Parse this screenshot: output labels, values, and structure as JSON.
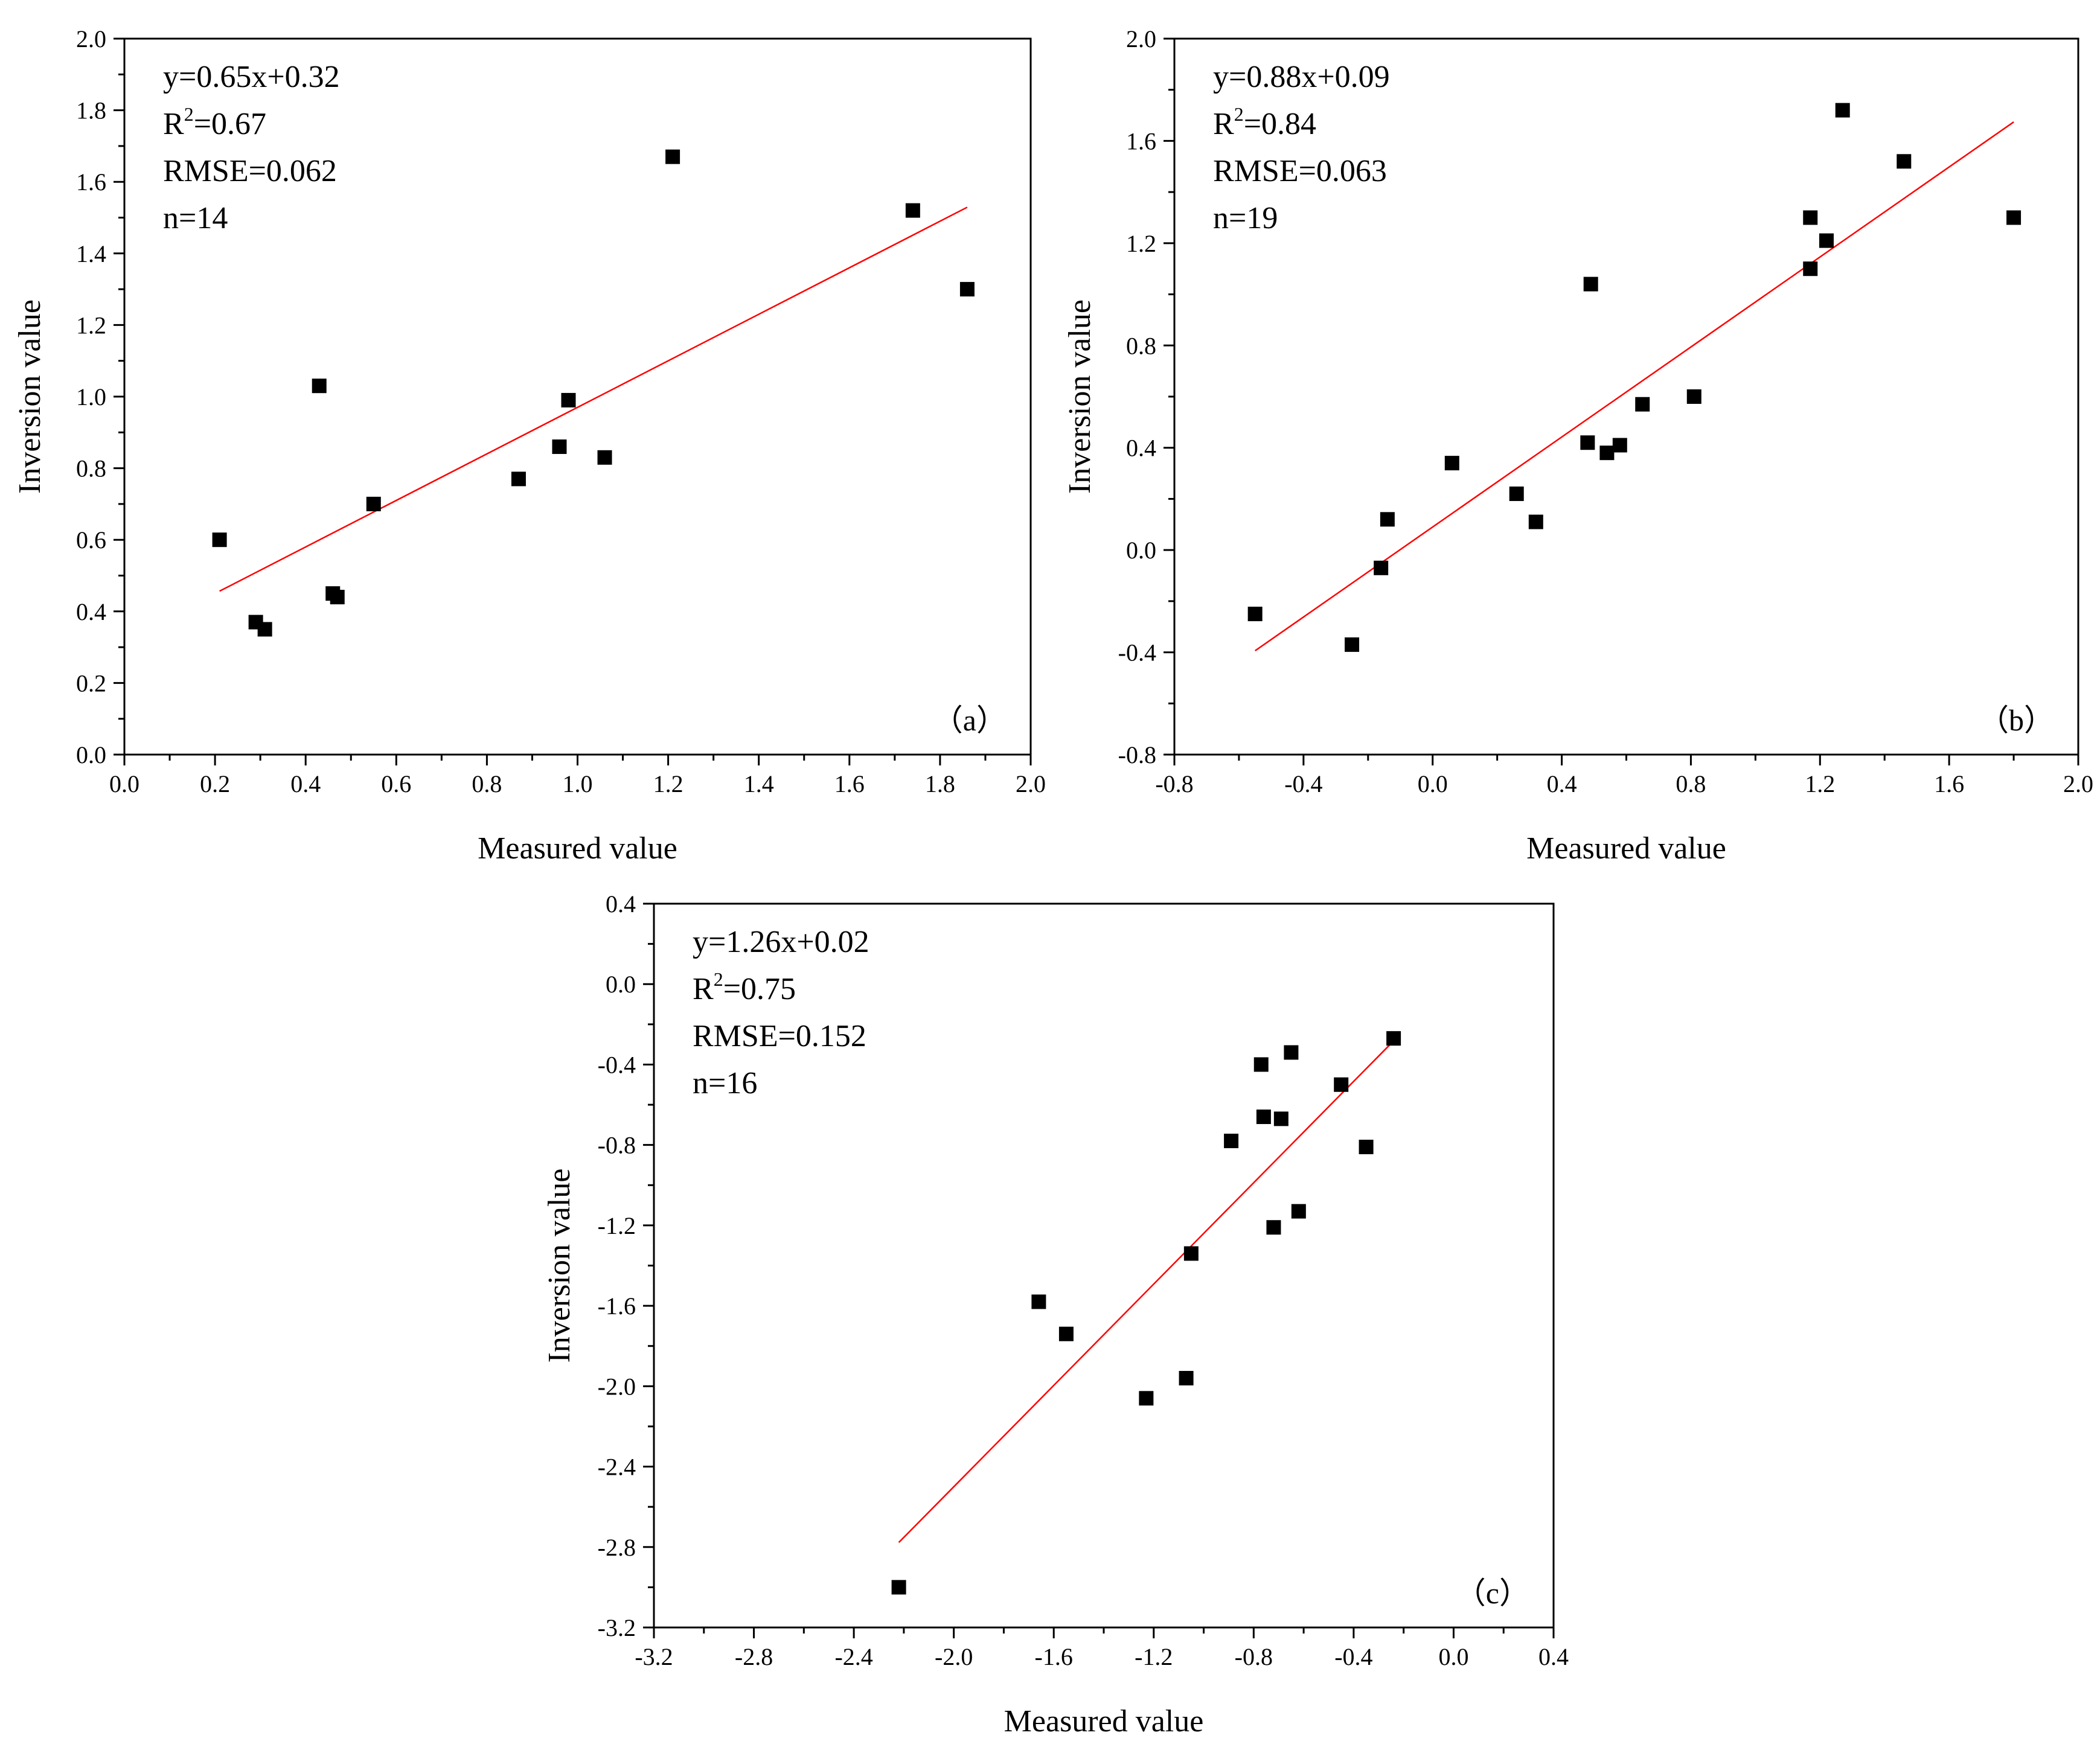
{
  "chart_data": [
    {
      "type": "scatter",
      "panel_label": "（a）",
      "xlabel": "Measured value",
      "ylabel": "Inversion value",
      "xlim": [
        0.0,
        2.0
      ],
      "ylim": [
        0.0,
        2.0
      ],
      "xticks": [
        "0.0",
        "0.2",
        "0.4",
        "0.6",
        "0.8",
        "1.0",
        "1.2",
        "1.4",
        "1.6",
        "1.8",
        "2.0"
      ],
      "yticks": [
        "0.0",
        "0.2",
        "0.4",
        "0.6",
        "0.8",
        "1.0",
        "1.2",
        "1.4",
        "1.6",
        "1.8",
        "2.0"
      ],
      "annotation": {
        "equation": "y=0.65x+0.32",
        "r2_prefix": "R",
        "r2_sup": "2",
        "r2_value": "=0.67",
        "rmse": "RMSE=0.062",
        "n": "n=14"
      },
      "fit_line": {
        "slope": 0.65,
        "intercept": 0.32,
        "x_start": 0.21,
        "x_end": 1.86,
        "color": "#ff0000"
      },
      "points": [
        [
          0.21,
          0.6
        ],
        [
          0.29,
          0.37
        ],
        [
          0.31,
          0.35
        ],
        [
          0.43,
          1.03
        ],
        [
          0.46,
          0.45
        ],
        [
          0.47,
          0.44
        ],
        [
          0.55,
          0.7
        ],
        [
          0.87,
          0.77
        ],
        [
          0.96,
          0.86
        ],
        [
          0.98,
          0.99
        ],
        [
          1.06,
          0.83
        ],
        [
          1.21,
          1.67
        ],
        [
          1.74,
          1.52
        ],
        [
          1.86,
          1.3
        ]
      ]
    },
    {
      "type": "scatter",
      "panel_label": "（b）",
      "xlabel": "Measured value",
      "ylabel": "Inversion value",
      "xlim": [
        -0.8,
        2.0
      ],
      "ylim": [
        -0.8,
        2.0
      ],
      "xticks": [
        "-0.8",
        "-0.4",
        "0.0",
        "0.4",
        "0.8",
        "1.2",
        "1.6",
        "2.0"
      ],
      "yticks": [
        "-0.8",
        "-0.4",
        "0.0",
        "0.4",
        "0.8",
        "1.2",
        "1.6",
        "2.0"
      ],
      "annotation": {
        "equation": "y=0.88x+0.09",
        "r2_prefix": "R",
        "r2_sup": "2",
        "r2_value": "=0.84",
        "rmse": "RMSE=0.063",
        "n": "n=19"
      },
      "fit_line": {
        "slope": 0.88,
        "intercept": 0.09,
        "x_start": -0.55,
        "x_end": 1.8,
        "color": "#ff0000"
      },
      "points": [
        [
          -0.55,
          -0.25
        ],
        [
          -0.25,
          -0.37
        ],
        [
          -0.16,
          -0.07
        ],
        [
          -0.14,
          0.12
        ],
        [
          0.06,
          0.34
        ],
        [
          0.26,
          0.22
        ],
        [
          0.32,
          0.11
        ],
        [
          0.48,
          0.42
        ],
        [
          0.49,
          1.04
        ],
        [
          0.54,
          0.38
        ],
        [
          0.58,
          0.41
        ],
        [
          0.65,
          0.57
        ],
        [
          0.81,
          0.6
        ],
        [
          1.17,
          1.3
        ],
        [
          1.17,
          1.1
        ],
        [
          1.22,
          1.21
        ],
        [
          1.27,
          1.72
        ],
        [
          1.46,
          1.52
        ],
        [
          1.8,
          1.3
        ]
      ]
    },
    {
      "type": "scatter",
      "panel_label": "（c）",
      "xlabel": "Measured value",
      "ylabel": "Inversion value",
      "xlim": [
        -3.2,
        0.4
      ],
      "ylim": [
        -3.2,
        0.4
      ],
      "xticks": [
        "-3.2",
        "-2.8",
        "-2.4",
        "-2.0",
        "-1.6",
        "-1.2",
        "-0.8",
        "-0.4",
        "0.0",
        "0.4"
      ],
      "yticks": [
        "-3.2",
        "-2.8",
        "-2.4",
        "-2.0",
        "-1.6",
        "-1.2",
        "-0.8",
        "-0.4",
        "0.0",
        "0.4"
      ],
      "annotation": {
        "equation": "y=1.26x+0.02",
        "r2_prefix": "R",
        "r2_sup": "2",
        "r2_value": "=0.75",
        "rmse": "RMSE=0.152",
        "n": "n=16"
      },
      "fit_line": {
        "slope": 1.26,
        "intercept": 0.02,
        "x_start": -2.22,
        "x_end": -0.24,
        "color": "#ff0000"
      },
      "points": [
        [
          -2.22,
          -3.0
        ],
        [
          -1.66,
          -1.58
        ],
        [
          -1.55,
          -1.74
        ],
        [
          -1.23,
          -2.06
        ],
        [
          -1.07,
          -1.96
        ],
        [
          -1.05,
          -1.34
        ],
        [
          -0.89,
          -0.78
        ],
        [
          -0.77,
          -0.4
        ],
        [
          -0.76,
          -0.66
        ],
        [
          -0.72,
          -1.21
        ],
        [
          -0.69,
          -0.67
        ],
        [
          -0.65,
          -0.34
        ],
        [
          -0.62,
          -1.13
        ],
        [
          -0.45,
          -0.5
        ],
        [
          -0.35,
          -0.81
        ],
        [
          -0.24,
          -0.27
        ]
      ]
    }
  ]
}
